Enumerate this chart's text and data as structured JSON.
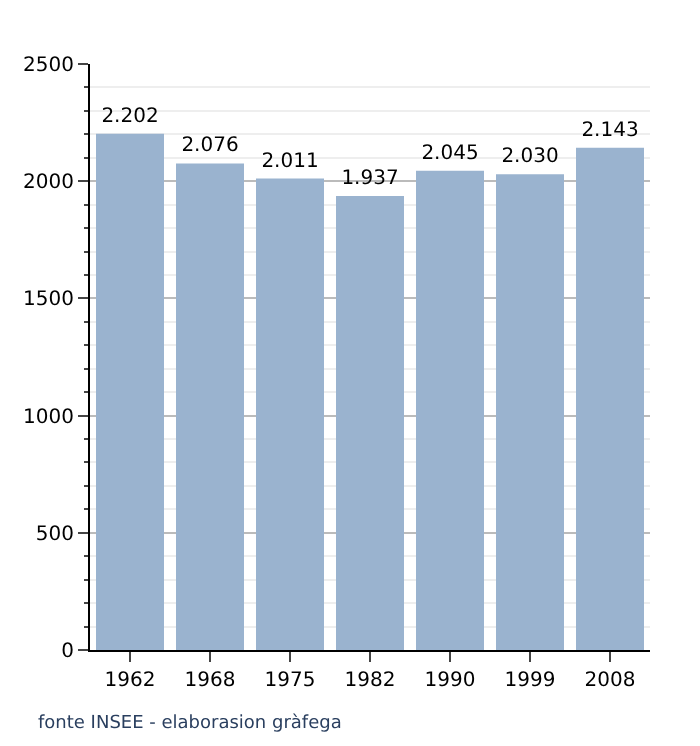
{
  "chart_data": {
    "type": "bar",
    "categories": [
      "1962",
      "1968",
      "1975",
      "1982",
      "1990",
      "1999",
      "2008"
    ],
    "values": [
      2202,
      2076,
      2011,
      1937,
      2045,
      2030,
      2143
    ],
    "value_labels": [
      "2.202",
      "2.076",
      "2.011",
      "1.937",
      "2.045",
      "2.030",
      "2.143"
    ],
    "color": "#9ab3cf",
    "ylim": [
      0,
      2500
    ],
    "yticks": [
      0,
      500,
      1000,
      1500,
      2000,
      2500
    ],
    "grid": "y",
    "annotations": [
      "fonte INSEE - elaborasion gràfega"
    ]
  }
}
